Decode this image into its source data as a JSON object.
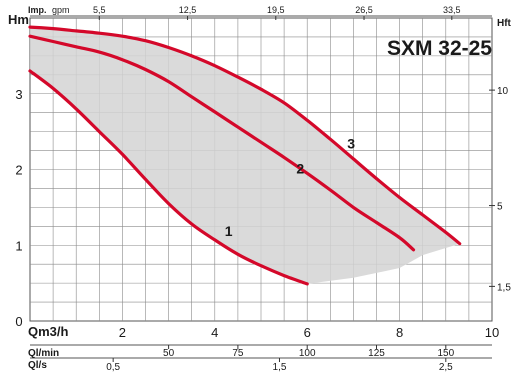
{
  "chart_data": {
    "type": "line",
    "title": "SXM 32-25",
    "title_color": "#d4082a",
    "curve_color": "#d4082a",
    "fill_color": "#d4d4d4",
    "grid": true,
    "xlabel": "Qm3/h",
    "ylabel": "Hm",
    "ylabel_right": "Hft",
    "xlim": [
      0,
      10
    ],
    "ylim": [
      0,
      4
    ],
    "x_ticks": [
      {
        "value": 2,
        "label": "2"
      },
      {
        "value": 4,
        "label": "4"
      },
      {
        "value": 6,
        "label": "6"
      },
      {
        "value": 8,
        "label": "8"
      },
      {
        "value": 10,
        "label": "10"
      }
    ],
    "y_ticks": [
      {
        "value": 0,
        "label": "0"
      },
      {
        "value": 1,
        "label": "1"
      },
      {
        "value": 2,
        "label": "2"
      },
      {
        "value": 3,
        "label": "3"
      }
    ],
    "y_right_ticks": [
      {
        "value": 0.457,
        "label": "1,5"
      },
      {
        "value": 1.524,
        "label": "5"
      },
      {
        "value": 3.048,
        "label": "10"
      }
    ],
    "top_axis": {
      "label_bold": "Imp.",
      "label_unit": "gpm",
      "ticks": [
        {
          "x": 1.5,
          "label": "5,5"
        },
        {
          "x": 3.41,
          "label": "12,5"
        },
        {
          "x": 5.32,
          "label": "19,5"
        },
        {
          "x": 7.23,
          "label": "26,5"
        },
        {
          "x": 9.13,
          "label": "33,5"
        }
      ]
    },
    "bottom_axes": [
      {
        "label": "Ql/min",
        "ticks": [
          {
            "x": 3.0,
            "label": "50"
          },
          {
            "x": 4.5,
            "label": "75"
          },
          {
            "x": 6.0,
            "label": "100"
          },
          {
            "x": 7.5,
            "label": "125"
          },
          {
            "x": 9.0,
            "label": "150"
          }
        ]
      },
      {
        "label": "Ql/s",
        "ticks": [
          {
            "x": 1.8,
            "label": "0,5"
          },
          {
            "x": 5.4,
            "label": "1,5"
          },
          {
            "x": 9.0,
            "label": "2,5"
          }
        ]
      }
    ],
    "series": [
      {
        "name": "1",
        "x": [
          0,
          0.5,
          1.0,
          1.5,
          2.0,
          2.5,
          3.0,
          3.5,
          4.0,
          4.5,
          5.0,
          5.5,
          6.0
        ],
        "y": [
          3.3,
          3.07,
          2.8,
          2.5,
          2.2,
          1.87,
          1.55,
          1.28,
          1.07,
          0.88,
          0.73,
          0.6,
          0.49
        ]
      },
      {
        "name": "2",
        "x": [
          0,
          0.5,
          1.0,
          1.5,
          2.0,
          2.5,
          3.0,
          3.5,
          4.0,
          4.5,
          5.0,
          5.5,
          6.0,
          6.5,
          7.0,
          7.5,
          8.0,
          8.3
        ],
        "y": [
          3.76,
          3.69,
          3.62,
          3.55,
          3.45,
          3.32,
          3.16,
          2.96,
          2.76,
          2.56,
          2.36,
          2.16,
          1.95,
          1.73,
          1.5,
          1.3,
          1.1,
          0.94
        ]
      },
      {
        "name": "3",
        "x": [
          0,
          0.5,
          1.0,
          1.5,
          2.0,
          2.5,
          3.0,
          3.5,
          4.0,
          4.5,
          5.0,
          5.5,
          6.0,
          6.5,
          7.0,
          7.5,
          8.0,
          8.5,
          9.0,
          9.3
        ],
        "y": [
          3.88,
          3.86,
          3.83,
          3.8,
          3.76,
          3.7,
          3.61,
          3.5,
          3.37,
          3.22,
          3.06,
          2.88,
          2.65,
          2.4,
          2.14,
          1.88,
          1.63,
          1.4,
          1.17,
          1.02
        ]
      }
    ],
    "shaded_region_bottom": {
      "x": [
        6.0,
        7.0,
        8.0,
        8.5,
        9.3
      ],
      "y": [
        0.49,
        0.57,
        0.7,
        0.87,
        1.02
      ]
    },
    "curve_label_positions": [
      {
        "name": "1",
        "x": 4.3,
        "y": 1.12
      },
      {
        "name": "2",
        "x": 5.85,
        "y": 1.95
      },
      {
        "name": "3",
        "x": 6.95,
        "y": 2.28
      }
    ]
  }
}
